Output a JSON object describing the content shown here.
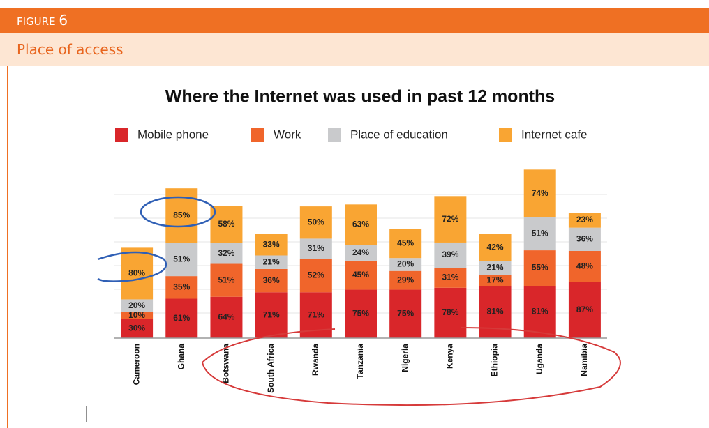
{
  "header": {
    "figure_label": "FIGURE",
    "figure_number": "6",
    "title": "Place of access"
  },
  "chart_data": {
    "type": "stacked_bar",
    "title": "Where the Internet was used in past 12 months",
    "categories": [
      "Cameroon",
      "Ghana",
      "Botswana",
      "South Africa",
      "Rwanda",
      "Tanzania",
      "Nigeria",
      "Kenya",
      "Ethiopia",
      "Uganda",
      "Namibia"
    ],
    "series": [
      {
        "name": "Mobile phone",
        "color": "#d9262a",
        "values": [
          30,
          61,
          64,
          71,
          71,
          75,
          75,
          78,
          81,
          81,
          87
        ],
        "value_labels": [
          "30%",
          "61%",
          "64%",
          "71%",
          "71%",
          "75%",
          "75%",
          "78%",
          "81%",
          "81%",
          "87%"
        ]
      },
      {
        "name": "Work",
        "color": "#f0652b",
        "values": [
          10,
          35,
          51,
          36,
          52,
          45,
          29,
          31,
          17,
          55,
          48
        ],
        "value_labels": [
          "10%",
          "35%",
          "51%",
          "36%",
          "52%",
          "45%",
          "29%",
          "31%",
          "17%",
          "55%",
          "48%"
        ]
      },
      {
        "name": "Place of education",
        "color": "#c9cacc",
        "values": [
          20,
          51,
          32,
          21,
          31,
          24,
          20,
          39,
          21,
          51,
          36
        ],
        "value_labels": [
          "20%",
          "51%",
          "32%",
          "21%",
          "31%",
          "24%",
          "20%",
          "39%",
          "21%",
          "51%",
          "36%"
        ]
      },
      {
        "name": "Internet cafe",
        "color": "#f9a533",
        "values": [
          80,
          85,
          58,
          33,
          50,
          63,
          45,
          72,
          42,
          74,
          23
        ],
        "value_labels": [
          "80%",
          "85%",
          "58%",
          "33%",
          "50%",
          "63%",
          "45%",
          "72%",
          "42%",
          "74%",
          "23%"
        ]
      }
    ],
    "ylim": [
      0,
      270
    ],
    "legend": "top"
  }
}
